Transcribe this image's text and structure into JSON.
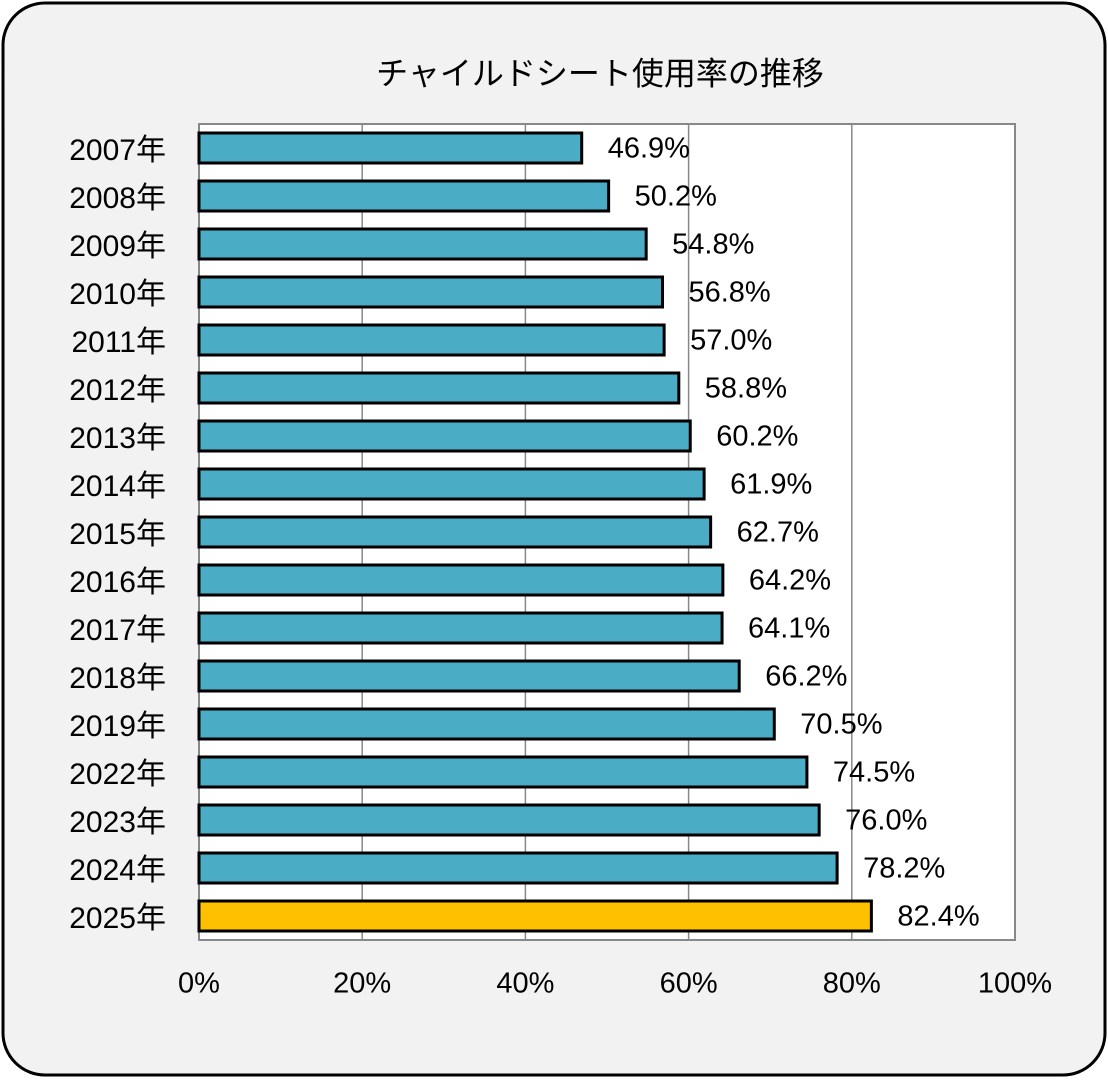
{
  "chart_data": {
    "type": "bar",
    "orientation": "horizontal",
    "title": "チャイルドシート使用率の推移",
    "categories": [
      "2007年",
      "2008年",
      "2009年",
      "2010年",
      "2011年",
      "2012年",
      "2013年",
      "2014年",
      "2015年",
      "2016年",
      "2017年",
      "2018年",
      "2019年",
      "2022年",
      "2023年",
      "2024年",
      "2025年"
    ],
    "values": [
      46.9,
      50.2,
      54.8,
      56.8,
      57.0,
      58.8,
      60.2,
      61.9,
      62.7,
      64.2,
      64.1,
      66.2,
      70.5,
      74.5,
      76.0,
      78.2,
      82.4
    ],
    "value_labels": [
      "46.9%",
      "50.2%",
      "54.8%",
      "56.8%",
      "57.0%",
      "58.8%",
      "60.2%",
      "61.9%",
      "62.7%",
      "64.2%",
      "64.1%",
      "66.2%",
      "70.5%",
      "74.5%",
      "76.0%",
      "78.2%",
      "82.4%"
    ],
    "colors": [
      "#4bacc6",
      "#4bacc6",
      "#4bacc6",
      "#4bacc6",
      "#4bacc6",
      "#4bacc6",
      "#4bacc6",
      "#4bacc6",
      "#4bacc6",
      "#4bacc6",
      "#4bacc6",
      "#4bacc6",
      "#4bacc6",
      "#4bacc6",
      "#4bacc6",
      "#4bacc6",
      "#ffc000"
    ],
    "xlim": [
      0,
      100
    ],
    "xticks": [
      {
        "value": 0,
        "label": "0%"
      },
      {
        "value": 20,
        "label": "20%"
      },
      {
        "value": 40,
        "label": "40%"
      },
      {
        "value": 60,
        "label": "60%"
      },
      {
        "value": 80,
        "label": "80%"
      },
      {
        "value": 100,
        "label": "100%"
      }
    ],
    "grid": true
  }
}
